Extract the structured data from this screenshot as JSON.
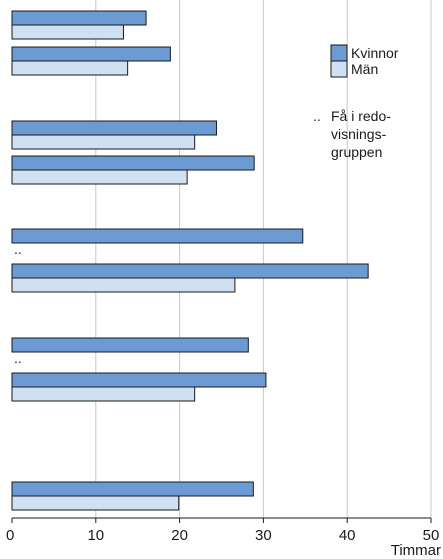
{
  "chart_data": {
    "type": "bar",
    "orientation": "horizontal",
    "xlabel": "Timmar",
    "xlim": [
      0,
      50
    ],
    "xticks": [
      "0",
      "10",
      "20",
      "30",
      "40",
      "50"
    ],
    "grid": true,
    "legend_position": "top-right",
    "series": [
      {
        "name": "Kvinnor",
        "color": "#6b9bd2"
      },
      {
        "name": "Män",
        "color": "#cfe0f2"
      }
    ],
    "groups": [
      {
        "bars": [
          {
            "series": "Kvinnor",
            "value": 16.0
          },
          {
            "series": "Män",
            "value": 13.3
          }
        ]
      },
      {
        "bars": [
          {
            "series": "Kvinnor",
            "value": 18.9
          },
          {
            "series": "Män",
            "value": 13.8
          }
        ]
      },
      {
        "bars": [
          {
            "series": "Kvinnor",
            "value": 24.4
          },
          {
            "series": "Män",
            "value": 21.8
          }
        ]
      },
      {
        "bars": [
          {
            "series": "Kvinnor",
            "value": 28.9
          },
          {
            "series": "Män",
            "value": 20.9
          }
        ]
      },
      {
        "bars": [
          {
            "series": "Kvinnor",
            "value": 34.7
          },
          {
            "series": "Män",
            "value": null,
            "label": ".."
          }
        ]
      },
      {
        "bars": [
          {
            "series": "Kvinnor",
            "value": 42.5
          },
          {
            "series": "Män",
            "value": 26.6
          }
        ]
      },
      {
        "bars": [
          {
            "series": "Kvinnor",
            "value": 28.2
          },
          {
            "series": "Män",
            "value": null,
            "label": ".."
          }
        ]
      },
      {
        "bars": [
          {
            "series": "Kvinnor",
            "value": 30.3
          },
          {
            "series": "Män",
            "value": 21.8
          }
        ]
      },
      {
        "bars": [
          {
            "series": "Kvinnor",
            "value": 28.8
          },
          {
            "series": "Män",
            "value": 19.9
          }
        ]
      }
    ],
    "note": {
      "symbol": "..",
      "lines": [
        "Få i redo-",
        "visnings-",
        "gruppen"
      ]
    }
  }
}
